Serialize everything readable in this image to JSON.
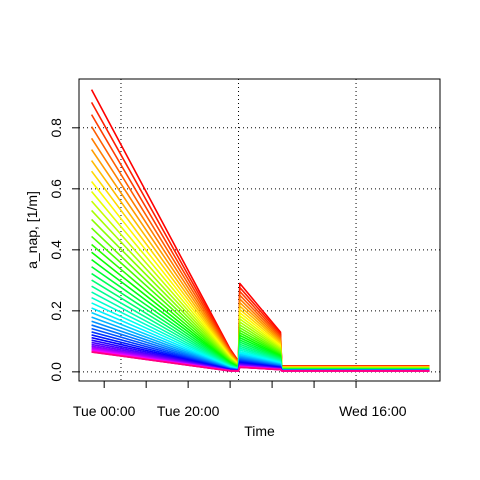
{
  "chart_data": {
    "type": "line",
    "title": "",
    "xlabel": "Time",
    "ylabel": "a_nap, [1/m]",
    "ylim": [
      -0.03,
      0.96
    ],
    "xlim_hours_from_tue_0000": [
      -6,
      80
    ],
    "x_tick_labels": [
      "Tue 00:00",
      "Tue 20:00",
      "Wed 16:00"
    ],
    "x_minor_tick_hours": [
      0,
      10,
      20,
      30,
      40,
      50,
      60
    ],
    "x_grid_hours": [
      4,
      32,
      60
    ],
    "y_ticks": [
      0.0,
      0.2,
      0.4,
      0.6,
      0.8
    ],
    "y_tick_labels": [
      "0.0",
      "0.2",
      "0.4",
      "0.6",
      "0.8"
    ],
    "grid": true,
    "grid_style": "dotted",
    "color_scale": "rainbow (red = short wavelength / high value, magenta = long wavelength / low value)",
    "series_count": 46,
    "x_breakpoints_hours": [
      -3,
      30,
      32,
      32.3,
      42,
      42.3,
      77.5
    ],
    "series_summary": {
      "highest_series": {
        "color": "#ff0000",
        "values_at_breakpoints": [
          0.925,
          0.075,
          0.035,
          0.29,
          0.13,
          0.02,
          0.02
        ]
      },
      "lowest_series": {
        "color": "#ff0066",
        "values_at_breakpoints": [
          0.065,
          0.003,
          0.003,
          0.015,
          0.007,
          0.003,
          0.003
        ]
      }
    }
  }
}
